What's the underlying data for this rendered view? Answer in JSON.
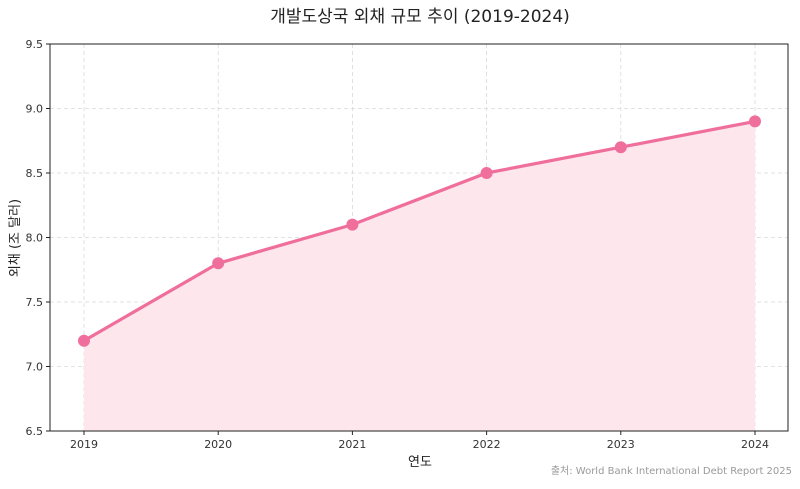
{
  "chart_data": {
    "type": "line",
    "title": "개발도상국 외채 규모 추이 (2019-2024)",
    "xlabel": "연도",
    "ylabel": "외채 (조 달러)",
    "x": [
      "2019",
      "2020",
      "2021",
      "2022",
      "2023",
      "2024"
    ],
    "series": [
      {
        "values": [
          7.2,
          7.8,
          8.1,
          8.5,
          8.7,
          8.9
        ]
      }
    ],
    "ylim": [
      6.5,
      9.5
    ],
    "yticks": [
      6.5,
      7.0,
      7.5,
      8.0,
      8.5,
      9.0,
      9.5
    ],
    "ytick_labels": [
      "6.5",
      "7.0",
      "7.5",
      "8.0",
      "8.5",
      "9.0",
      "9.5"
    ],
    "grid": true,
    "area_fill": true,
    "colors": {
      "line": "#f06e9c",
      "fill": "#fde6ec"
    },
    "source": "출처: World Bank International Debt Report 2025"
  }
}
